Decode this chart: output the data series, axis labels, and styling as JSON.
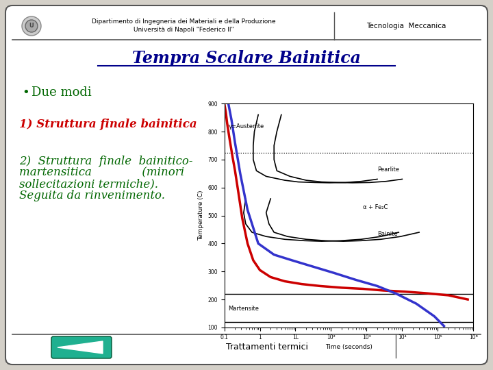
{
  "bg_color": "#d4d0c8",
  "slide_bg": "#ffffff",
  "header_text1": "Dipartimento di Ingegneria dei Materiali e della Produzione",
  "header_text2": "Università di Napoli \"Federico II\"",
  "header_right": "Tecnologia  Meccanica",
  "title": "Tempra Scalare Bainitica",
  "title_color": "#00008B",
  "bullet_color": "#006600",
  "bullet_text": "Due modi",
  "item1_text": "1) Struttura finale bainitica",
  "item1_color": "#CC0000",
  "item2_text1": "2)  Struttura  finale  bainitico-",
  "item2_text2": "martensitica              (minori",
  "item2_text3": "sollecitazioni termiche).",
  "item2_text4": "Seguita da rinvenimento.",
  "item_color": "#006600",
  "footer_text": "Trattamenti termici",
  "footer_bg": "#20B090",
  "curve1_color": "#CC0000",
  "curve2_color": "#3333CC",
  "black": "#000000"
}
